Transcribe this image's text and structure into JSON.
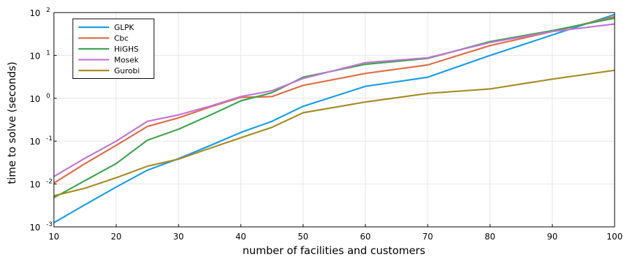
{
  "chart_data": {
    "type": "line",
    "title": "",
    "xlabel": "number of facilities and customers",
    "ylabel": "time to solve (seconds)",
    "xlim": [
      10,
      100
    ],
    "ylim": [
      0.001,
      100
    ],
    "y_scale": "log",
    "x_ticks": [
      "10",
      "20",
      "30",
      "40",
      "50",
      "60",
      "70",
      "80",
      "90",
      "100"
    ],
    "x_tick_values": [
      10,
      20,
      30,
      40,
      50,
      60,
      70,
      80,
      90,
      100
    ],
    "y_ticks": [
      {
        "base": "10",
        "exp": "-3",
        "value": 0.001
      },
      {
        "base": "10",
        "exp": "-2",
        "value": 0.01
      },
      {
        "base": "10",
        "exp": "-1",
        "value": 0.1
      },
      {
        "base": "10",
        "exp": "0",
        "value": 1
      },
      {
        "base": "10",
        "exp": "1",
        "value": 10
      },
      {
        "base": "10",
        "exp": "2",
        "value": 100
      }
    ],
    "grid": true,
    "legend_position": "top-left",
    "x": [
      10,
      15,
      20,
      25,
      30,
      35,
      40,
      45,
      50,
      60,
      70,
      80,
      90,
      100
    ],
    "series": [
      {
        "name": "GLPK",
        "color": "#1a9ee9",
        "values": [
          0.00125,
          0.0033,
          0.0085,
          0.021,
          0.039,
          0.078,
          0.16,
          0.29,
          0.65,
          1.9,
          3.1,
          10,
          30,
          90
        ]
      },
      {
        "name": "Cbc",
        "color": "#e06c45",
        "values": [
          0.0105,
          0.03,
          0.08,
          0.22,
          0.35,
          0.62,
          1.05,
          1.1,
          2.0,
          3.8,
          6.0,
          17,
          36,
          80
        ]
      },
      {
        "name": "HiGHS",
        "color": "#3aa64f",
        "values": [
          0.0048,
          0.012,
          0.03,
          0.105,
          0.19,
          0.4,
          0.87,
          1.35,
          3.1,
          6.2,
          8.5,
          21,
          38,
          74
        ]
      },
      {
        "name": "Mosek",
        "color": "#c473d6",
        "values": [
          0.015,
          0.04,
          0.1,
          0.29,
          0.41,
          0.65,
          1.1,
          1.5,
          2.9,
          6.8,
          8.8,
          20,
          36,
          54
        ]
      },
      {
        "name": "Gurobi",
        "color": "#a88b23",
        "values": [
          0.0053,
          0.008,
          0.014,
          0.026,
          0.038,
          0.068,
          0.12,
          0.21,
          0.46,
          0.82,
          1.3,
          1.65,
          2.8,
          4.5
        ]
      }
    ]
  }
}
